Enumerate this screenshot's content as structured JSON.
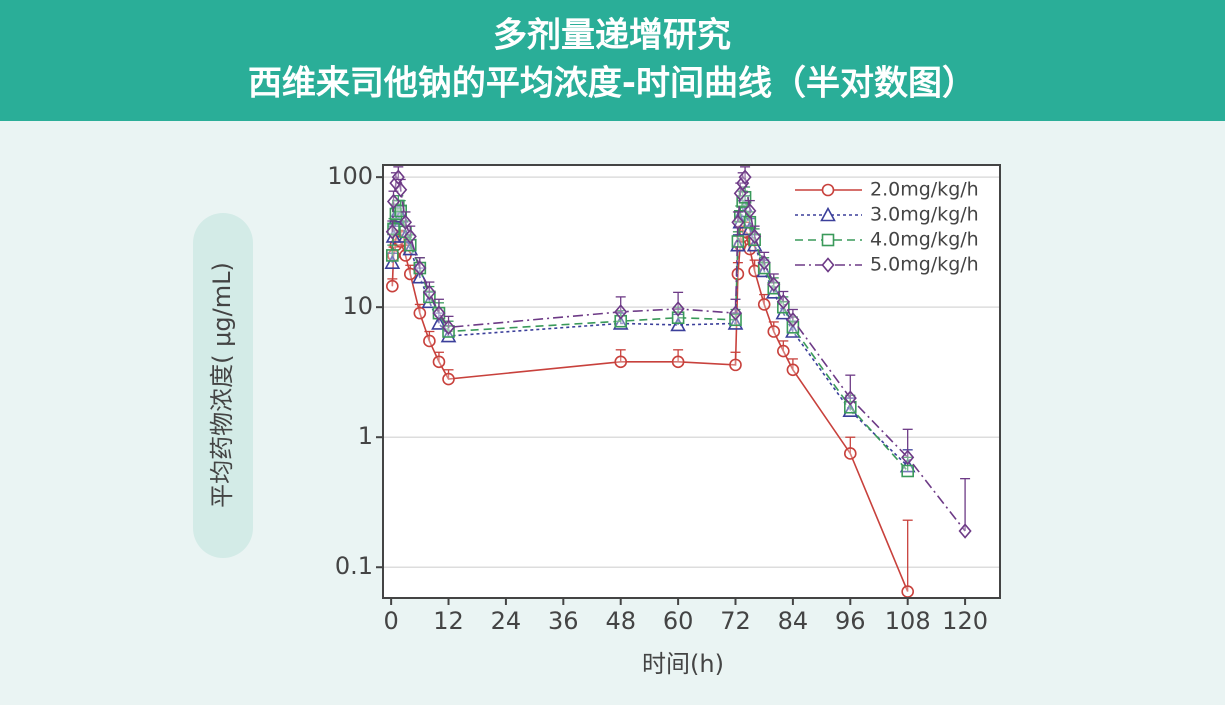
{
  "chart_data": {
    "type": "line",
    "title": [
      "多剂量递增研究",
      "西维来司他钠的平均浓度-时间曲线（半对数图）"
    ],
    "xlabel": "时间(h)",
    "ylabel": "平均药物浓度( μg/mL)",
    "log_y": true,
    "grid": true,
    "legend": "upper right",
    "x": [
      0.25,
      0.5,
      1,
      1.5,
      2,
      3,
      4,
      6,
      8,
      10,
      12,
      48,
      60,
      72,
      72.5,
      73,
      73.5,
      74,
      75,
      76,
      78,
      80,
      82,
      84,
      96,
      108,
      120
    ],
    "xlim": [
      -1.7,
      127.3
    ],
    "xticks": [
      0,
      12,
      24,
      36,
      48,
      60,
      72,
      84,
      96,
      108,
      120
    ],
    "ylim": [
      0.058,
      124
    ],
    "yticks": [
      100,
      10,
      1,
      0.1
    ],
    "series": [
      {
        "name": "2.0mg/kg/h",
        "color": "#c8413c",
        "dash": "none",
        "marker": "circle",
        "values": [
          14.5,
          25,
          30,
          33,
          32,
          25,
          18,
          9,
          5.5,
          3.8,
          2.8,
          3.8,
          3.8,
          3.6,
          18,
          30,
          35,
          38,
          28,
          19,
          10.5,
          6.5,
          4.6,
          3.3,
          0.75,
          0.065,
          null
        ],
        "errors": [
          2,
          4,
          6,
          6,
          6,
          5,
          3,
          1.5,
          1,
          0.7,
          0.5,
          0.9,
          0.9,
          0.9,
          4,
          6,
          7,
          7,
          6,
          4,
          2,
          1.2,
          0.9,
          0.7,
          0.25,
          0.165,
          null
        ]
      },
      {
        "name": "3.0mg/kg/h",
        "color": "#3b3f9a",
        "dash": "3,3",
        "marker": "triangle",
        "values": [
          22,
          35,
          48,
          55,
          50,
          35,
          28,
          17,
          11,
          7.5,
          6,
          7.5,
          7.3,
          7.5,
          30,
          45,
          55,
          60,
          40,
          30,
          19,
          13,
          9,
          6.5,
          1.6,
          0.6,
          null
        ],
        "errors": [
          4,
          7,
          10,
          11,
          10,
          7,
          5,
          3,
          2,
          1.5,
          1.2,
          1.5,
          1.5,
          1.5,
          6,
          9,
          11,
          12,
          8,
          6,
          4,
          2.5,
          2,
          1.3,
          0.4,
          0.2,
          null
        ]
      },
      {
        "name": "4.0mg/kg/h",
        "color": "#3a9a5a",
        "dash": "8,5",
        "marker": "square",
        "values": [
          25,
          40,
          52,
          60,
          55,
          38,
          30,
          20,
          12,
          9,
          6.5,
          7.8,
          8.3,
          8,
          32,
          50,
          65,
          70,
          45,
          33,
          20,
          14,
          10,
          7,
          1.7,
          0.55,
          null
        ],
        "errors": [
          5,
          8,
          10,
          12,
          11,
          8,
          6,
          4,
          2.4,
          1.8,
          1.3,
          1.6,
          1.7,
          1.6,
          6,
          10,
          13,
          14,
          9,
          7,
          4,
          2.8,
          2,
          1.4,
          0.4,
          0.15,
          null
        ]
      },
      {
        "name": "5.0mg/kg/h",
        "color": "#6d3a86",
        "dash": "10,4,2,4",
        "marker": "diamond",
        "values": [
          38,
          65,
          90,
          100,
          80,
          45,
          35,
          20,
          13,
          9,
          7,
          9.2,
          9.7,
          9,
          45,
          75,
          90,
          100,
          55,
          35,
          22,
          15,
          11,
          8,
          2,
          0.7,
          0.19
        ],
        "errors": [
          8,
          13,
          18,
          20,
          16,
          9,
          7,
          4,
          2.6,
          2.5,
          1.5,
          2.8,
          3.3,
          2.5,
          9,
          15,
          18,
          20,
          11,
          7,
          4.4,
          3,
          2.2,
          1.6,
          1,
          0.45,
          0.29
        ]
      }
    ]
  }
}
